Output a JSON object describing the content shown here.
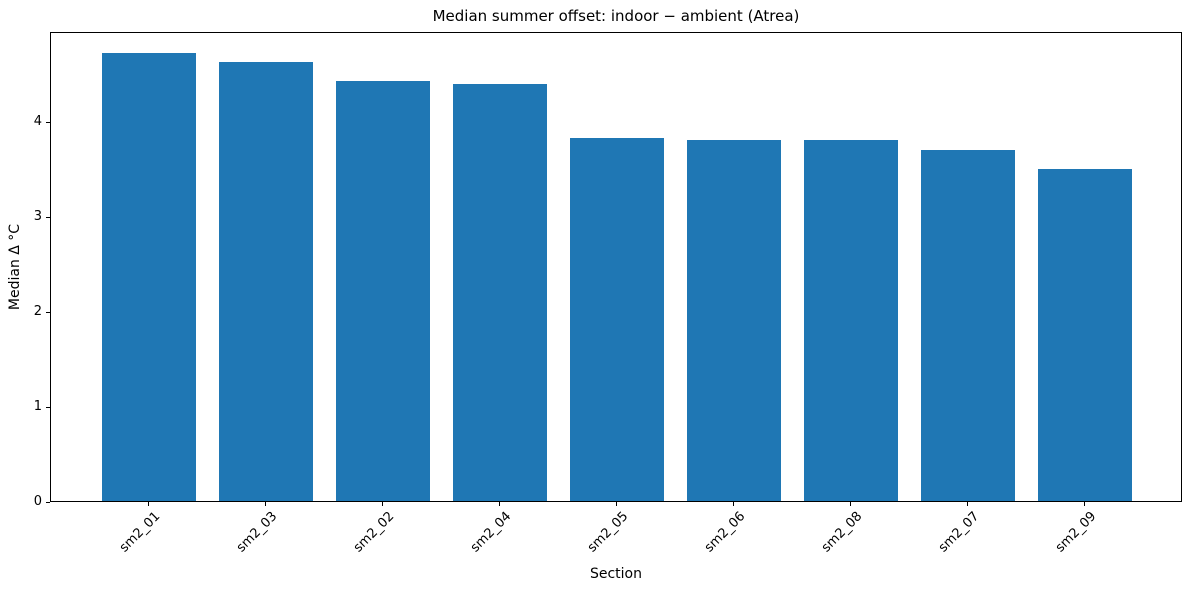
{
  "figure": {
    "background_color": "#ffffff"
  },
  "chart_data": {
    "type": "bar",
    "title": "Median summer offset: indoor − ambient (Atrea)",
    "xlabel": "Section",
    "ylabel": "Median Δ °C",
    "categories": [
      "sm2_01",
      "sm2_03",
      "sm2_02",
      "sm2_04",
      "sm2_05",
      "sm2_06",
      "sm2_08",
      "sm2_07",
      "sm2_09"
    ],
    "values": [
      4.72,
      4.62,
      4.42,
      4.39,
      3.82,
      3.8,
      3.8,
      3.7,
      3.5
    ],
    "yticks": [
      0,
      1,
      2,
      3,
      4
    ],
    "ylim": [
      0,
      4.95
    ],
    "xlim": [
      -0.84,
      8.84
    ],
    "bar_width_units": 0.8,
    "bar_color": "#1f77b4",
    "axis_color": "#000000",
    "grid": false,
    "legend": null,
    "x_tick_rotation_deg": 45
  }
}
